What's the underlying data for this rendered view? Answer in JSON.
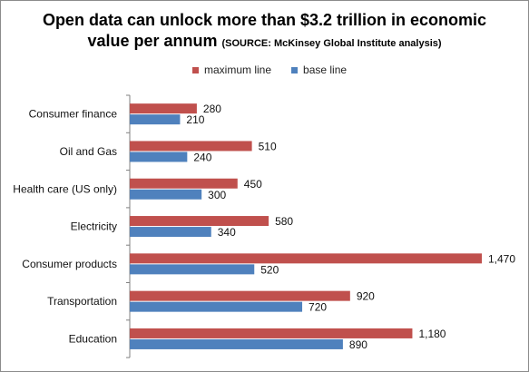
{
  "chart_data": {
    "type": "bar",
    "orientation": "horizontal",
    "title": "Open data can unlock more than $3.2 trillion in economic value per annum",
    "title_line1": "Open data can unlock more than $3.2 trillion in economic",
    "title_line2": "value per annum",
    "source": "(SOURCE: McKinsey Global Institute analysis)",
    "categories": [
      "Consumer finance",
      "Oil and Gas",
      "Health care (US only)",
      "Electricity",
      "Consumer products",
      "Transportation",
      "Education"
    ],
    "series": [
      {
        "name": "maximum line",
        "color": "#c0504d",
        "values": [
          280,
          510,
          450,
          580,
          1470,
          920,
          1180
        ],
        "labels": [
          "280",
          "510",
          "450",
          "580",
          "1,470",
          "920",
          "1,180"
        ]
      },
      {
        "name": "base line",
        "color": "#4f81bd",
        "values": [
          210,
          240,
          300,
          340,
          520,
          720,
          890
        ],
        "labels": [
          "210",
          "240",
          "300",
          "340",
          "520",
          "720",
          "890"
        ]
      }
    ],
    "xlim": [
      0,
      1470
    ],
    "grid": false,
    "legend_position": "top"
  }
}
